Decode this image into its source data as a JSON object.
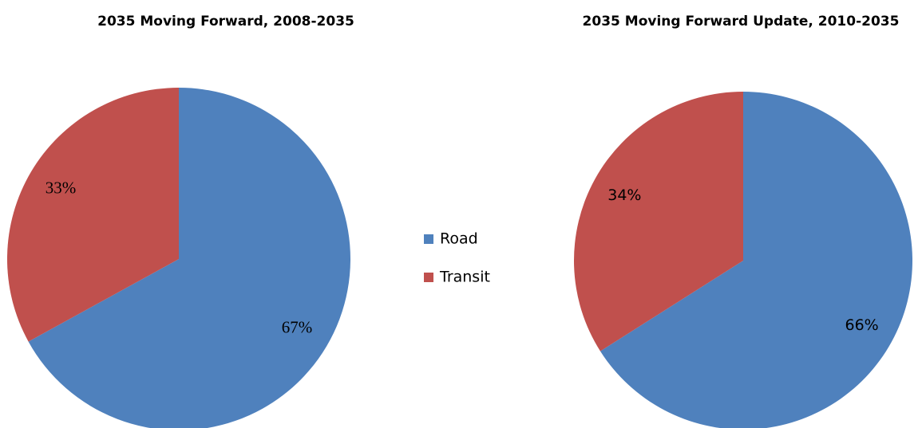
{
  "chart_data": [
    {
      "type": "pie",
      "title": "2035 Moving Forward, 2008-2035",
      "categories": [
        "Road",
        "Transit"
      ],
      "values": [
        67,
        33
      ],
      "value_labels": [
        "67%",
        "33%"
      ],
      "colors": [
        "#4f81bd",
        "#c0504d"
      ]
    },
    {
      "type": "pie",
      "title": "2035 Moving Forward Update, 2010-2035",
      "categories": [
        "Road",
        "Transit"
      ],
      "values": [
        66,
        34
      ],
      "value_labels": [
        "66%",
        "34%"
      ],
      "colors": [
        "#4f81bd",
        "#c0504d"
      ]
    }
  ]
}
